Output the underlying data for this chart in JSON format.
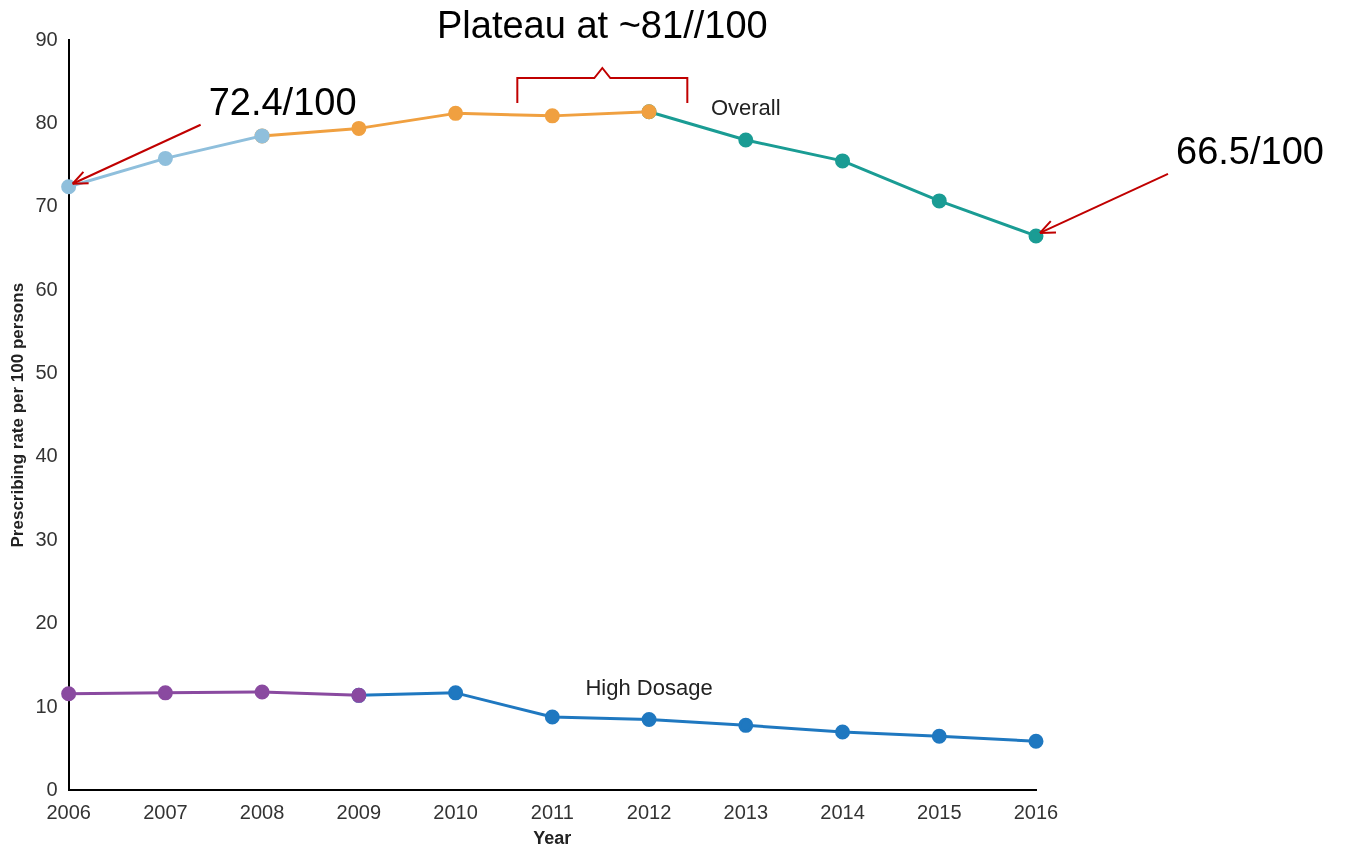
{
  "chart_data": {
    "type": "line",
    "categories": [
      "2006",
      "2007",
      "2008",
      "2009",
      "2010",
      "2011",
      "2012",
      "2013",
      "2014",
      "2015",
      "2016"
    ],
    "series": [
      {
        "color": "#8fbfdc",
        "values": [
          72.4,
          75.8,
          78.5,
          null,
          null,
          null,
          null,
          null,
          null,
          null,
          null
        ]
      },
      {
        "color": "#f0a040",
        "values": [
          null,
          null,
          78.5,
          79.4,
          81.2,
          80.9,
          81.4,
          null,
          null,
          null,
          null
        ]
      },
      {
        "name": "Overall",
        "color": "#1a9c94",
        "values": [
          null,
          null,
          null,
          null,
          null,
          null,
          81.4,
          78.0,
          75.5,
          70.7,
          66.5
        ]
      },
      {
        "color": "#8a4aa0",
        "values": [
          11.6,
          11.7,
          11.8,
          11.4,
          null,
          null,
          null,
          null,
          null,
          null,
          null
        ]
      },
      {
        "name": "High Dosage",
        "color": "#1f78c0",
        "values": [
          null,
          null,
          null,
          11.4,
          11.7,
          8.8,
          8.5,
          7.8,
          7.0,
          6.5,
          5.9
        ]
      }
    ],
    "xlabel": "Year",
    "ylabel": "Prescribing rate per 100 persons",
    "ylim": [
      0,
      90
    ],
    "yticks": [
      0,
      10,
      20,
      30,
      40,
      50,
      60,
      70,
      80,
      90
    ],
    "annotations": [
      {
        "text": "72.4/100",
        "x": "2006",
        "y": 72.4
      },
      "Plateau at ~81//100",
      {
        "text": "66.5/100",
        "x": "2016",
        "y": 66.5
      }
    ],
    "marker": "circle",
    "line_style": "solid",
    "grid": false,
    "legend": false
  }
}
